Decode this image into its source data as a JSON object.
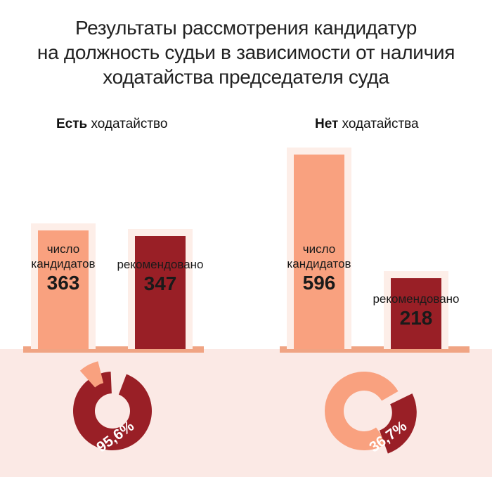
{
  "title": {
    "line1": "Результаты рассмотрения кандидатур",
    "line2": "на должность судьи в зависимости от наличия",
    "line3": "ходатайства председателя суда"
  },
  "colors": {
    "candidates": "#f9a17f",
    "recommended": "#991f26",
    "halo": "#fdeee8",
    "ground": "#fbe9e5",
    "baseline": "#f0a483"
  },
  "chart_data": [
    {
      "type": "bar",
      "heading_bold": "Есть",
      "heading_rest": " ходатайство",
      "categories": [
        "число кандидатов",
        "рекомендовано"
      ],
      "labels": [
        [
          "число",
          "кандидатов"
        ],
        [
          "рекомендовано"
        ]
      ],
      "values": [
        363,
        347
      ],
      "display_values": [
        "363",
        "347"
      ],
      "share": {
        "value": 95.6,
        "label": "95,6%"
      }
    },
    {
      "type": "bar",
      "heading_bold": "Нет",
      "heading_rest": " ходатайства",
      "categories": [
        "число кандидатов",
        "рекомендовано"
      ],
      "labels": [
        [
          "число",
          "кандидатов"
        ],
        [
          "рекомендовано"
        ]
      ],
      "values": [
        596,
        218
      ],
      "display_values": [
        "596",
        "218"
      ],
      "share": {
        "value": 36.7,
        "label": "36,7%"
      }
    }
  ]
}
